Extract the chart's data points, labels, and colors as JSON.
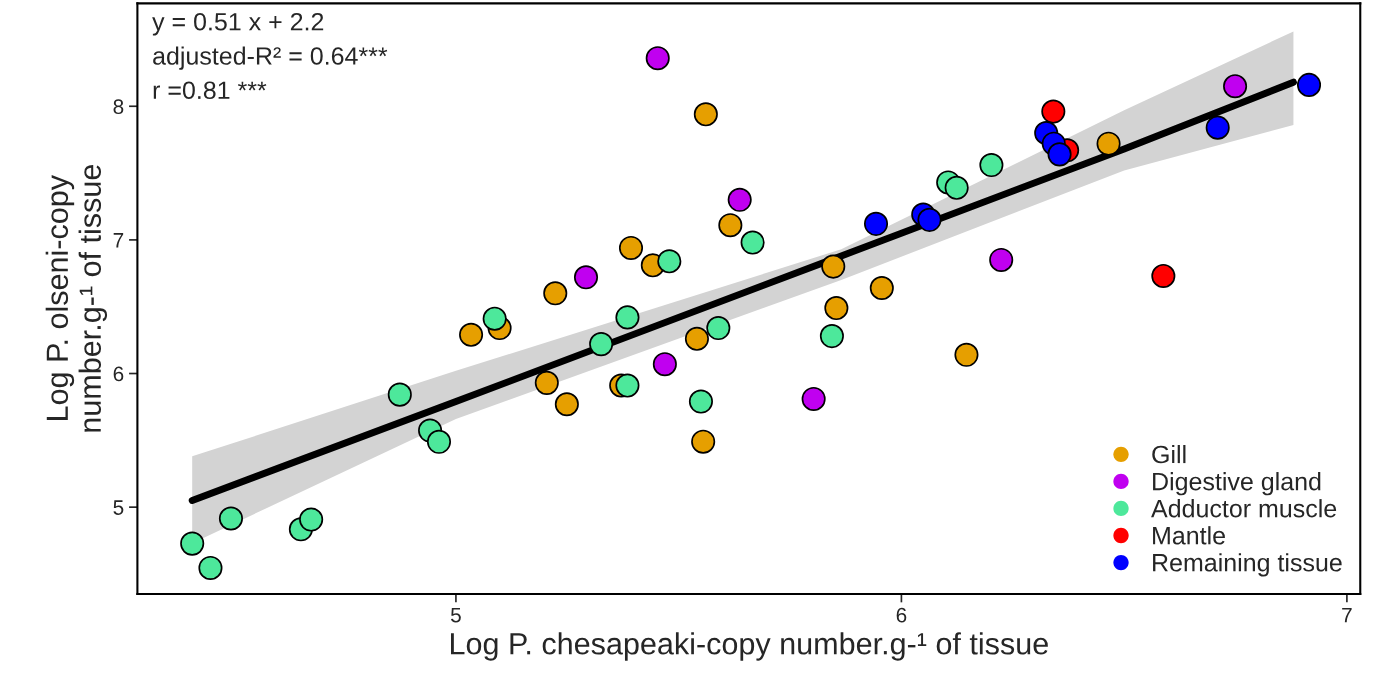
{
  "chart_data": {
    "type": "scatter",
    "xlabel": "Log P. chesapeaki-copy number.g-¹ of tissue",
    "ylabel": "Log P. olseni-copy\nnumber.g-¹ of tissue",
    "annotations": [
      "y = 0.51 x + 2.2",
      "adjusted-R² = 0.64***",
      "r =0.81 ***"
    ],
    "xlim": [
      4.285,
      7.03
    ],
    "ylim": [
      4.35,
      8.77
    ],
    "xticks": [
      5,
      6,
      7
    ],
    "yticks": [
      5,
      6,
      7,
      8
    ],
    "grid": false,
    "legend": "bottom right",
    "marker": "circle",
    "series": [
      {
        "type": "line",
        "marker": "none",
        "color": "#000000",
        "x": [
          4.408,
          5.0,
          5.865,
          6.5,
          6.88
        ],
        "values": [
          5.05,
          5.79,
          6.88,
          7.68,
          8.18
        ],
        "lower": [
          4.73,
          5.66,
          6.7,
          7.52,
          7.86
        ],
        "upper": [
          5.38,
          6.02,
          6.93,
          7.97,
          8.56
        ]
      },
      {
        "name": "Gill",
        "color": "#e69f00",
        "x": [
          5.034,
          5.098,
          5.561,
          5.616,
          5.393,
          5.442,
          5.223,
          5.541,
          5.847,
          5.854,
          5.956,
          5.204,
          5.249,
          5.371,
          5.555,
          6.465,
          6.146
        ],
        "values": [
          6.29,
          6.34,
          7.94,
          7.11,
          6.94,
          6.81,
          6.6,
          6.26,
          6.8,
          6.49,
          6.64,
          5.93,
          5.77,
          5.91,
          5.49,
          7.72,
          6.14
        ]
      },
      {
        "name": "Digestive gland",
        "color": "#c000f0",
        "x": [
          5.453,
          5.637,
          5.292,
          5.469,
          5.803,
          6.749,
          6.224
        ],
        "values": [
          8.36,
          7.3,
          6.72,
          6.07,
          5.81,
          8.15,
          6.85
        ]
      },
      {
        "name": "Adductor muscle",
        "color": "#4de89b",
        "x": [
          4.408,
          4.449,
          4.495,
          4.652,
          4.675,
          4.874,
          4.942,
          4.962,
          5.087,
          5.666,
          5.479,
          5.385,
          5.326,
          5.589,
          5.844,
          5.385,
          5.55,
          6.105,
          6.124,
          6.202
        ],
        "values": [
          4.727,
          4.545,
          4.915,
          4.834,
          4.907,
          5.842,
          5.573,
          5.489,
          6.41,
          6.98,
          6.84,
          6.42,
          6.22,
          6.34,
          6.28,
          5.91,
          5.79,
          7.43,
          7.39,
          7.56
        ]
      },
      {
        "name": "Mantle",
        "color": "#ff0000",
        "x": [
          6.341,
          6.372,
          6.588
        ],
        "values": [
          7.96,
          7.67,
          6.73
        ]
      },
      {
        "name": "Remaining tissue",
        "color": "#0000ff",
        "x": [
          5.943,
          6.049,
          6.063,
          6.325,
          6.342,
          6.355,
          6.915,
          6.71
        ],
        "values": [
          7.12,
          7.19,
          7.15,
          7.8,
          7.72,
          7.64,
          8.16,
          7.84
        ]
      }
    ]
  }
}
